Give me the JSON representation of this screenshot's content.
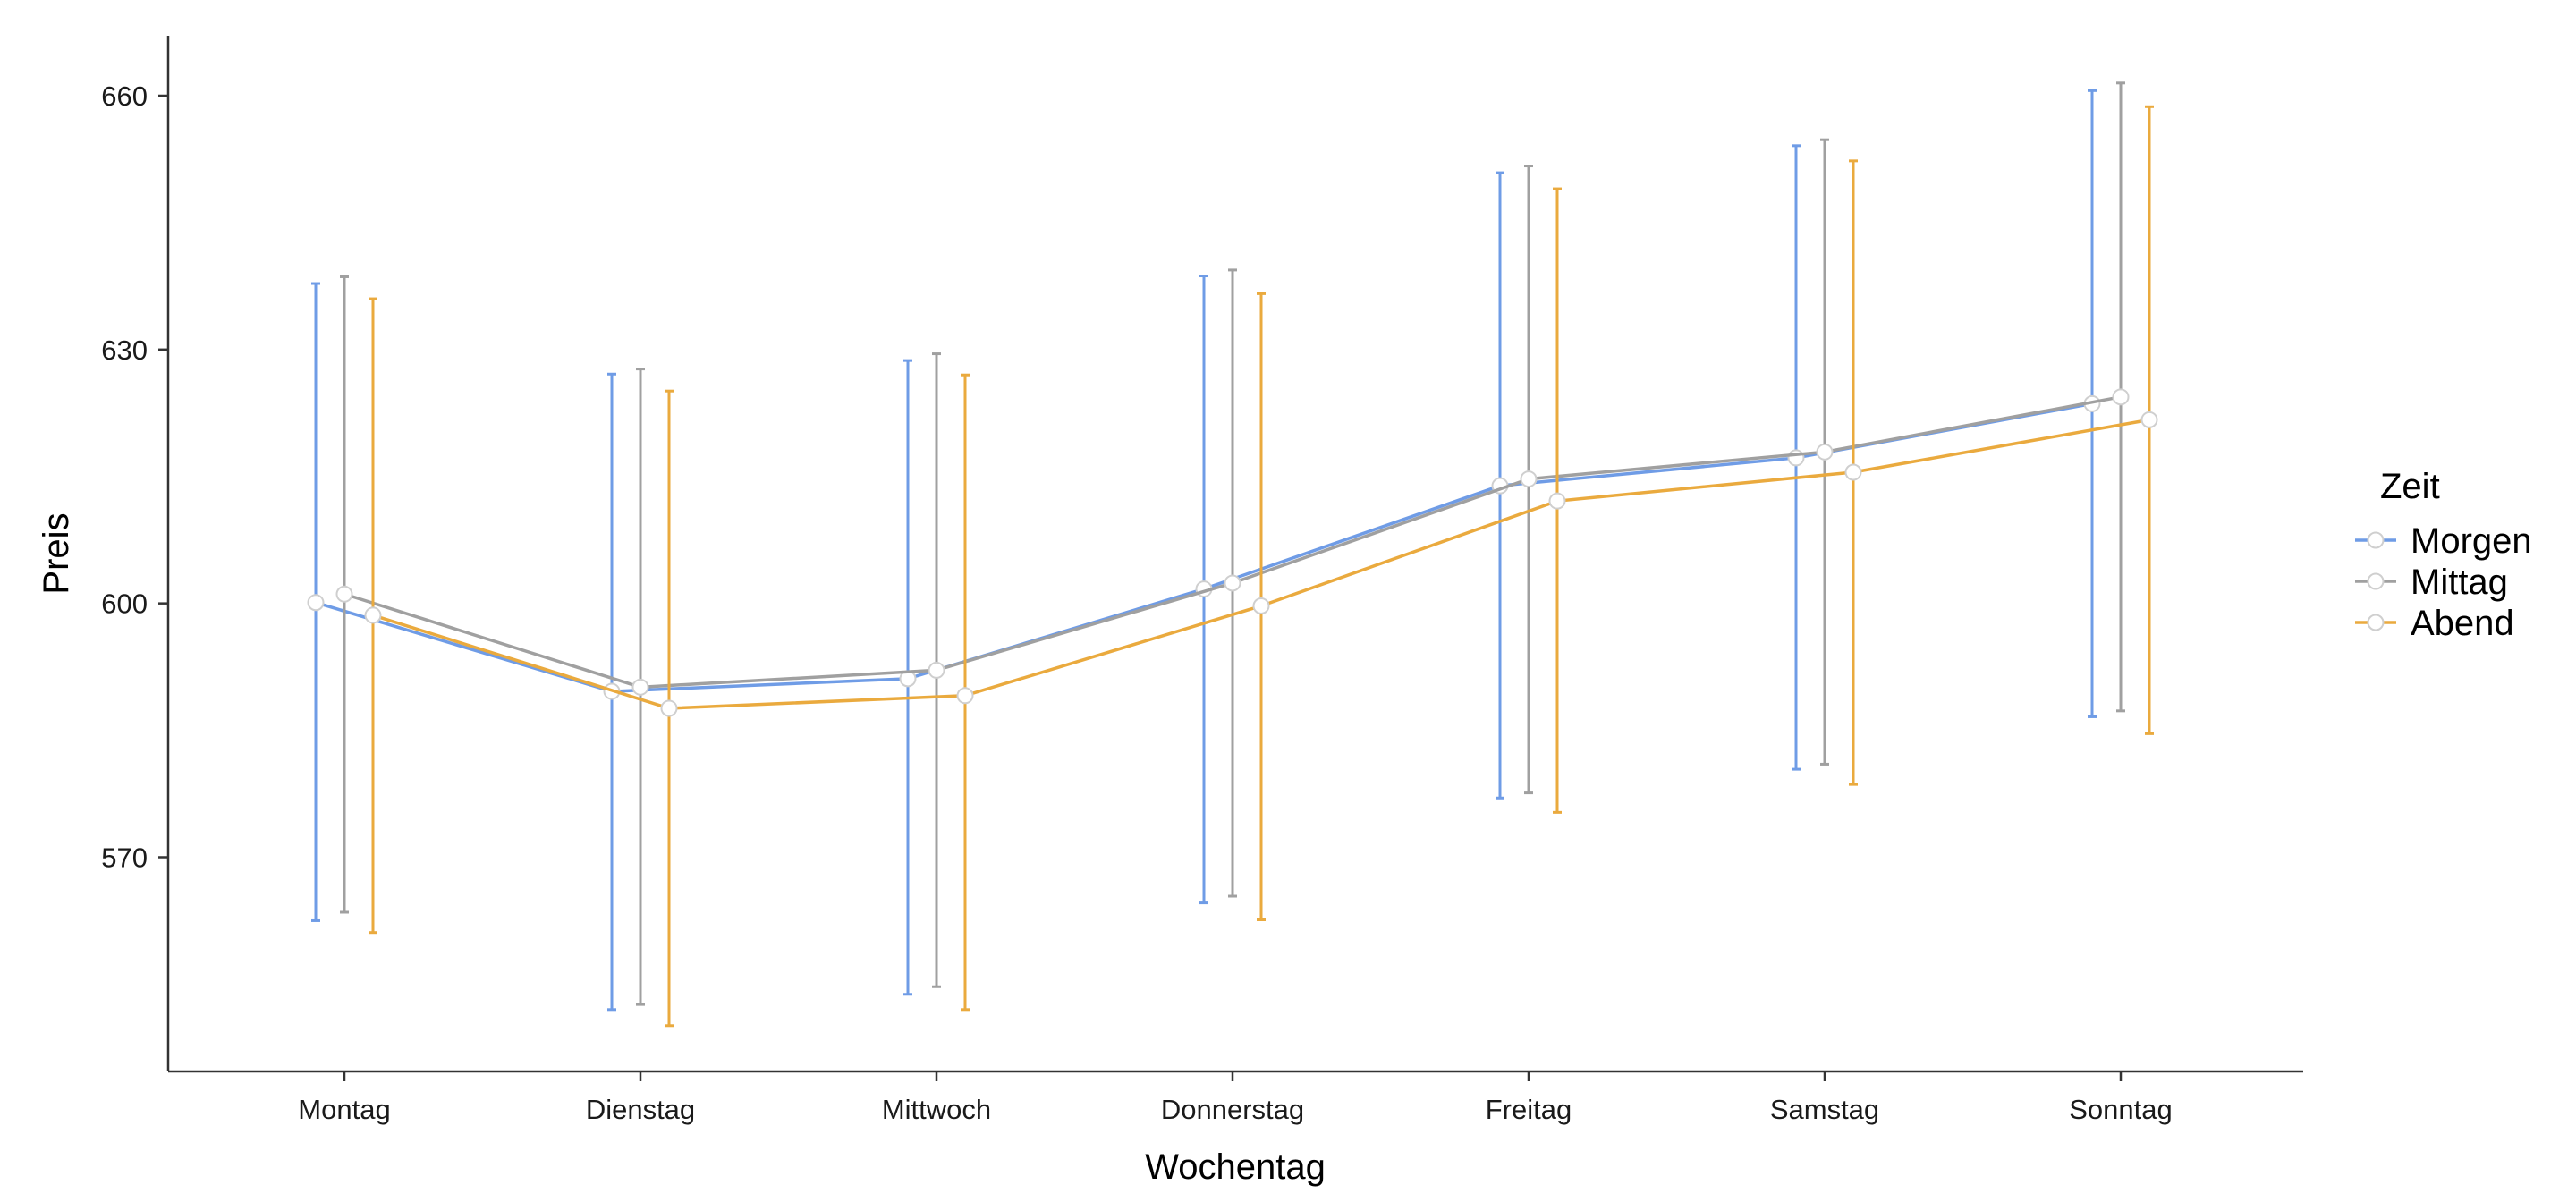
{
  "chart_data": {
    "type": "line",
    "xlabel": "Wochentag",
    "ylabel": "Preis",
    "categories": [
      "Montag",
      "Dienstag",
      "Mittwoch",
      "Donnerstag",
      "Freitag",
      "Samstag",
      "Sonntag"
    ],
    "ylim": [
      545,
      667
    ],
    "yticks": [
      570,
      600,
      630,
      660
    ],
    "grid": false,
    "error_bars": true,
    "legend": {
      "title": "Zeit",
      "position": "right"
    },
    "series": [
      {
        "name": "Morgen",
        "color": "#6f9ce6",
        "values": [
          600.1,
          589.6,
          591.1,
          601.7,
          613.9,
          617.2,
          623.6
        ],
        "err_low": [
          562.5,
          552.0,
          553.8,
          564.6,
          577.0,
          580.4,
          586.6
        ],
        "err_high": [
          637.8,
          627.1,
          628.7,
          638.7,
          650.9,
          654.1,
          660.6
        ]
      },
      {
        "name": "Mittag",
        "color": "#a0a0a0",
        "values": [
          601.1,
          590.1,
          592.1,
          602.4,
          614.7,
          617.9,
          624.4
        ],
        "err_low": [
          563.5,
          552.6,
          554.7,
          565.4,
          577.6,
          581.0,
          587.3
        ],
        "err_high": [
          638.6,
          627.7,
          629.5,
          639.4,
          651.7,
          654.8,
          661.5
        ]
      },
      {
        "name": "Abend",
        "color": "#eaaa3e",
        "values": [
          598.6,
          587.6,
          589.1,
          599.7,
          612.1,
          615.5,
          621.7
        ],
        "err_low": [
          561.1,
          550.1,
          552.0,
          562.6,
          575.3,
          578.6,
          584.6
        ],
        "err_high": [
          636.0,
          625.1,
          627.0,
          636.6,
          649.0,
          652.3,
          658.7
        ]
      }
    ]
  }
}
